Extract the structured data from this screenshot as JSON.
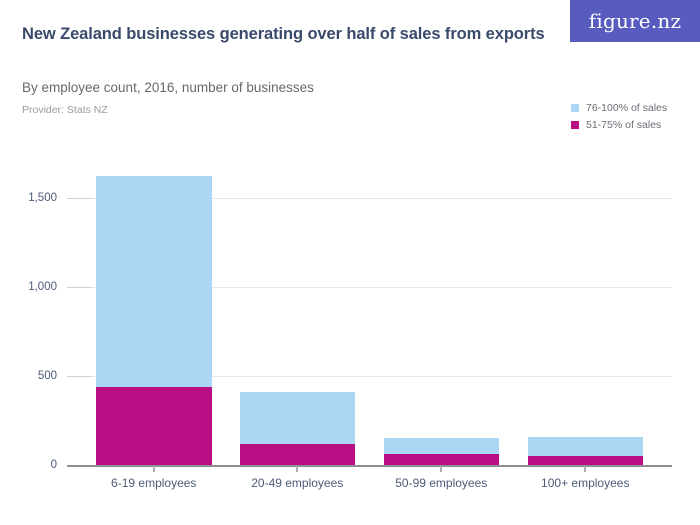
{
  "header": {
    "title": "New Zealand businesses generating over half of sales from exports",
    "subtitle": "By employee count, 2016, number of businesses",
    "provider": "Provider: Stats NZ",
    "logo_text": "figure.nz"
  },
  "legend": {
    "items": [
      {
        "label": "76-100% of sales",
        "color": "#acd7f4"
      },
      {
        "label": "51-75% of sales",
        "color": "#b90d84"
      }
    ]
  },
  "colors": {
    "logo_background": "#575cbe",
    "title_text": "#3a4a6b",
    "axis_text": "#4d5b77",
    "series_76_100": "#acd7f4",
    "series_51_75": "#b90d84"
  },
  "chart_data": {
    "type": "bar",
    "stacked": true,
    "title": "New Zealand businesses generating over half of sales from exports",
    "subtitle": "By employee count, 2016, number of businesses",
    "provider": "Stats NZ",
    "categories": [
      "6-19 employees",
      "20-49 employees",
      "50-99 employees",
      "100+ employees"
    ],
    "series": [
      {
        "name": "51-75% of sales",
        "color": "#b90d84",
        "values": [
          440,
          120,
          63,
          51
        ]
      },
      {
        "name": "76-100% of sales",
        "color": "#acd7f4",
        "values": [
          1185,
          292,
          90,
          111
        ]
      }
    ],
    "stack_totals": [
      1625,
      412,
      153,
      162
    ],
    "xlabel": "",
    "ylabel": "number of businesses",
    "yticks": [
      0,
      500,
      1000,
      1500
    ],
    "ytick_labels": [
      "0",
      "500",
      "1,000",
      "1,500"
    ],
    "ylim": [
      0,
      1660
    ],
    "grid": true,
    "legend_position": "top-right"
  }
}
